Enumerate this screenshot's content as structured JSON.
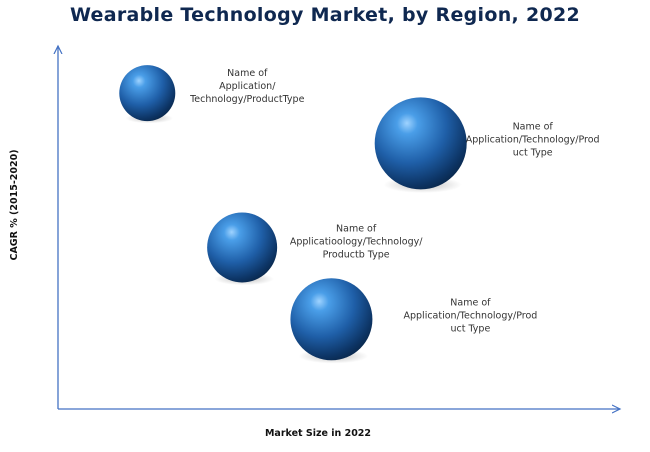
{
  "title": "Wearable Technology Market, by Region, 2022",
  "chart_data": {
    "type": "scatter",
    "title": "Wearable Technology Market, by Region, 2022",
    "xlabel": "Market Size in 2022",
    "ylabel": "CAGR % (2015-2020)",
    "xlim": [
      0,
      100
    ],
    "ylim": [
      0,
      100
    ],
    "grid": false,
    "axis_color": "#4472c4",
    "bubble_color": "#1f5fa8",
    "points": [
      {
        "x": 16,
        "y": 88,
        "size": 28,
        "label": [
          "Name of",
          "Application/",
          "Technology/ProductType"
        ]
      },
      {
        "x": 65,
        "y": 74,
        "size": 46,
        "label": [
          "Name of",
          "Application/Technology/Prod",
          "uct Type"
        ]
      },
      {
        "x": 33,
        "y": 45,
        "size": 35,
        "label": [
          "Name of",
          "Applicatioology/Technology/",
          "Productb Type"
        ]
      },
      {
        "x": 49,
        "y": 25,
        "size": 41,
        "label": [
          "Name of",
          "Application/Technology/Prod",
          "uct Type"
        ]
      }
    ]
  }
}
